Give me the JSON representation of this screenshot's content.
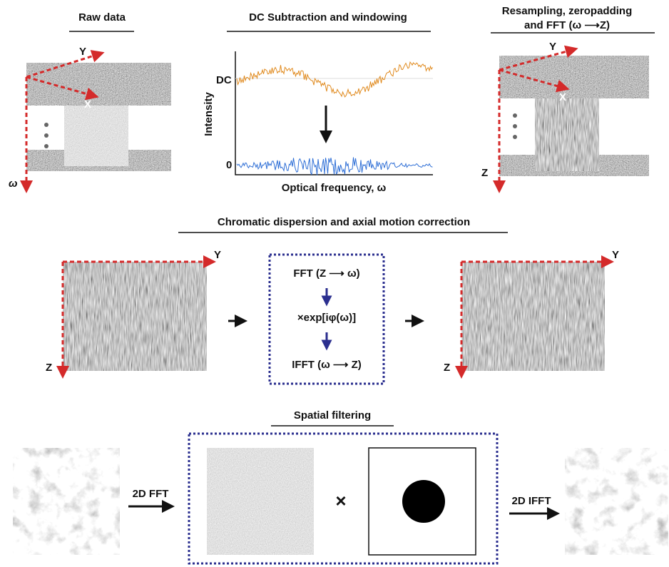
{
  "top": {
    "raw": {
      "title": "Raw data",
      "y": "Y",
      "x": "X",
      "w": "ω"
    },
    "dc": {
      "title": "DC Subtraction and windowing",
      "dc_label": "DC",
      "zero_label": "0",
      "ylabel": "Intensity",
      "xlabel": "Optical frequency, ω"
    },
    "resample": {
      "title_lines": [
        "Resampling, zeropadding",
        "and FFT (ω ⟶Z)"
      ],
      "y": "Y",
      "x": "X",
      "z": "Z"
    }
  },
  "middle": {
    "title": "Chromatic dispersion and axial motion correction",
    "left": {
      "y": "Y",
      "z": "Z"
    },
    "right": {
      "y": "Y",
      "z": "Z"
    },
    "steps": [
      "FFT (Z ⟶ ω)",
      "×exp[iφ(ω)]",
      "IFFT (ω ⟶ Z)"
    ]
  },
  "bottom": {
    "title": "Spatial filtering",
    "fft": "2D FFT",
    "times": "×",
    "ifft": "2D IFFT"
  }
}
